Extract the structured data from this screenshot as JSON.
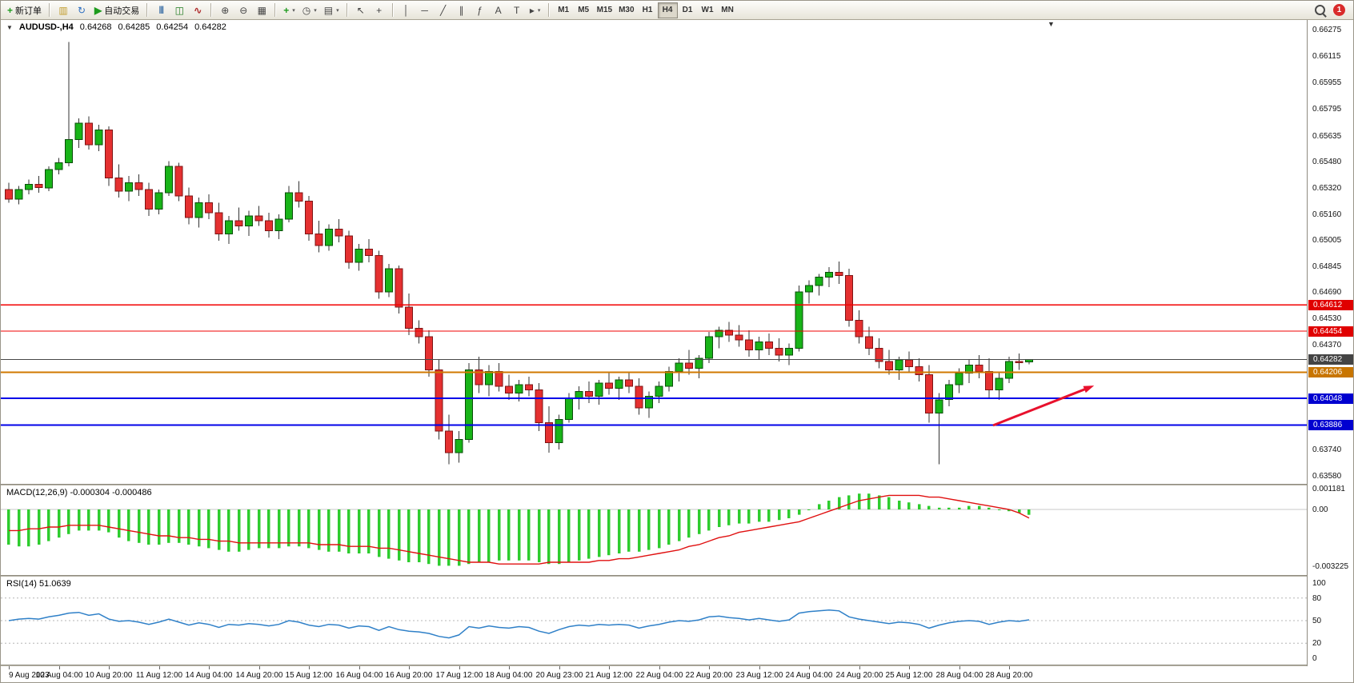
{
  "toolbar": {
    "new_order_label": "新订单",
    "autotrading_label": "自动交易",
    "timeframes": [
      "M1",
      "M5",
      "M15",
      "M30",
      "H1",
      "H4",
      "D1",
      "W1",
      "MN"
    ],
    "active_timeframe": "H4",
    "notification_count": "1"
  },
  "icons": {
    "new_order": "+",
    "charts": "▥",
    "profiles": "↻",
    "autotrading": "▶",
    "chart_bars": "|||",
    "chart_candles": "◫",
    "chart_line": "∿",
    "zoom_in": "⊕",
    "zoom_out": "⊖",
    "tile_windows": "▦",
    "indicators": "+",
    "periods": "◷",
    "templates": "▤",
    "cursor": "↖",
    "crosshair": "+",
    "vertical_line": "│",
    "horizontal_line": "─",
    "trendline": "╱",
    "channel": "∥",
    "fibonacci": "ƒ",
    "text": "A",
    "text_label": "T",
    "arrows": "▸",
    "caret": "▾",
    "chart_menu": "▼",
    "shift_marker": "▼"
  },
  "chart": {
    "header": {
      "symbol_period": "AUDUSD-,H4",
      "open": "0.64268",
      "high": "0.64285",
      "low": "0.64254",
      "close": "0.64282"
    },
    "levels": [
      {
        "type": "resistance",
        "price": 0.64612,
        "label": "0.64612",
        "color": "#f20000",
        "tag_bg": "#e00000",
        "width": 1.3
      },
      {
        "type": "resistance",
        "price": 0.64454,
        "label": "0.64454",
        "color": "#f20000",
        "tag_bg": "#e00000",
        "width": 1.3
      },
      {
        "type": "current-price",
        "price": 0.64282,
        "label": "0.64282",
        "color": "#484848",
        "tag_bg": "#444444",
        "width": 1
      },
      {
        "type": "pivot",
        "price": 0.64206,
        "label": "0.64206",
        "color": "#d07800",
        "tag_bg": "#c87500",
        "width": 2
      },
      {
        "type": "support",
        "price": 0.64048,
        "label": "0.64048",
        "color": "#0000e8",
        "tag_bg": "#0000d0",
        "width": 2
      },
      {
        "type": "support",
        "price": 0.63886,
        "label": "0.63886",
        "color": "#0000e8",
        "tag_bg": "#0000d0",
        "width": 2
      }
    ],
    "arrow_annotation": {
      "x1_index": 98.4,
      "price1": 0.63885,
      "x2_index": 108.5,
      "price2": 0.64125,
      "color": "#e8112d"
    }
  },
  "chart_data": {
    "type": "candlestick",
    "symbol": "AUDUSD-",
    "period": "H4",
    "price_axis_labels": [
      "0.66275",
      "0.66115",
      "0.65955",
      "0.65795",
      "0.65635",
      "0.65480",
      "0.65320",
      "0.65160",
      "0.65005",
      "0.64845",
      "0.64690",
      "0.64530",
      "0.64370",
      "0.64210",
      "0.64050",
      "0.63890",
      "0.63740",
      "0.63580"
    ],
    "price_range": {
      "max": 0.66275,
      "min": 0.6358
    },
    "time_labels": [
      "9 Aug 2023",
      "10 Aug 04:00",
      "10 Aug 20:00",
      "11 Aug 12:00",
      "14 Aug 04:00",
      "14 Aug 20:00",
      "15 Aug 12:00",
      "16 Aug 04:00",
      "16 Aug 20:00",
      "17 Aug 12:00",
      "18 Aug 04:00",
      "20 Aug 23:00",
      "21 Aug 12:00",
      "22 Aug 04:00",
      "22 Aug 20:00",
      "23 Aug 12:00",
      "24 Aug 04:00",
      "24 Aug 20:00",
      "25 Aug 12:00",
      "28 Aug 04:00",
      "28 Aug 20:00"
    ],
    "candles": [
      [
        0.6531,
        0.6535,
        0.6523,
        0.6525
      ],
      [
        0.6525,
        0.6533,
        0.6522,
        0.6531
      ],
      [
        0.6531,
        0.6537,
        0.6528,
        0.6534
      ],
      [
        0.6534,
        0.6539,
        0.6529,
        0.6532
      ],
      [
        0.6532,
        0.6545,
        0.653,
        0.6543
      ],
      [
        0.6543,
        0.655,
        0.654,
        0.6547
      ],
      [
        0.6547,
        0.662,
        0.6545,
        0.6561
      ],
      [
        0.6561,
        0.6574,
        0.6556,
        0.6571
      ],
      [
        0.6571,
        0.6575,
        0.6555,
        0.6558
      ],
      [
        0.6558,
        0.657,
        0.6554,
        0.6567
      ],
      [
        0.6567,
        0.6569,
        0.6533,
        0.6538
      ],
      [
        0.6538,
        0.6546,
        0.6526,
        0.653
      ],
      [
        0.653,
        0.6539,
        0.6524,
        0.6535
      ],
      [
        0.6535,
        0.654,
        0.6527,
        0.6531
      ],
      [
        0.6531,
        0.6535,
        0.6515,
        0.6519
      ],
      [
        0.6519,
        0.6531,
        0.6516,
        0.6529
      ],
      [
        0.6529,
        0.6548,
        0.6527,
        0.6545
      ],
      [
        0.6545,
        0.6547,
        0.6524,
        0.6527
      ],
      [
        0.6527,
        0.6532,
        0.651,
        0.6514
      ],
      [
        0.6514,
        0.6526,
        0.6508,
        0.6523
      ],
      [
        0.6523,
        0.6528,
        0.6513,
        0.6517
      ],
      [
        0.6517,
        0.6523,
        0.65,
        0.6504
      ],
      [
        0.6504,
        0.6515,
        0.6498,
        0.6512
      ],
      [
        0.6512,
        0.652,
        0.6506,
        0.6509
      ],
      [
        0.6509,
        0.6518,
        0.6503,
        0.6515
      ],
      [
        0.6515,
        0.6521,
        0.6509,
        0.6512
      ],
      [
        0.6512,
        0.6517,
        0.6502,
        0.6506
      ],
      [
        0.6506,
        0.6516,
        0.6501,
        0.6513
      ],
      [
        0.6513,
        0.6533,
        0.6511,
        0.6529
      ],
      [
        0.6529,
        0.6536,
        0.652,
        0.6524
      ],
      [
        0.6524,
        0.6527,
        0.65,
        0.6504
      ],
      [
        0.6504,
        0.6512,
        0.6493,
        0.6497
      ],
      [
        0.6497,
        0.651,
        0.6494,
        0.6507
      ],
      [
        0.6507,
        0.6513,
        0.6499,
        0.6503
      ],
      [
        0.6503,
        0.6506,
        0.6483,
        0.6487
      ],
      [
        0.6487,
        0.6498,
        0.6482,
        0.6495
      ],
      [
        0.6495,
        0.6501,
        0.6487,
        0.6491
      ],
      [
        0.6491,
        0.6494,
        0.6465,
        0.6469
      ],
      [
        0.6469,
        0.6486,
        0.6466,
        0.6483
      ],
      [
        0.6483,
        0.6485,
        0.6456,
        0.646
      ],
      [
        0.646,
        0.6468,
        0.6443,
        0.6447
      ],
      [
        0.6447,
        0.6452,
        0.6438,
        0.6442
      ],
      [
        0.6442,
        0.6446,
        0.6418,
        0.6422
      ],
      [
        0.6422,
        0.6428,
        0.638,
        0.6385
      ],
      [
        0.6385,
        0.6395,
        0.6365,
        0.6372
      ],
      [
        0.6372,
        0.6385,
        0.6366,
        0.638
      ],
      [
        0.638,
        0.6426,
        0.6378,
        0.6422
      ],
      [
        0.6422,
        0.643,
        0.6408,
        0.6413
      ],
      [
        0.6413,
        0.6425,
        0.6406,
        0.6421
      ],
      [
        0.6421,
        0.6426,
        0.6409,
        0.6412
      ],
      [
        0.6412,
        0.6419,
        0.6404,
        0.6408
      ],
      [
        0.6408,
        0.6416,
        0.6403,
        0.6413
      ],
      [
        0.6413,
        0.6418,
        0.6406,
        0.641
      ],
      [
        0.641,
        0.6414,
        0.6385,
        0.639
      ],
      [
        0.639,
        0.64,
        0.6372,
        0.6378
      ],
      [
        0.6378,
        0.6395,
        0.6374,
        0.6392
      ],
      [
        0.6392,
        0.6408,
        0.639,
        0.6405
      ],
      [
        0.6405,
        0.6412,
        0.6398,
        0.6409
      ],
      [
        0.6409,
        0.6415,
        0.6402,
        0.6406
      ],
      [
        0.6406,
        0.6416,
        0.6401,
        0.6414
      ],
      [
        0.6414,
        0.642,
        0.6407,
        0.6411
      ],
      [
        0.6411,
        0.6418,
        0.6404,
        0.6416
      ],
      [
        0.6416,
        0.6421,
        0.6408,
        0.6412
      ],
      [
        0.6412,
        0.6417,
        0.6395,
        0.6399
      ],
      [
        0.6399,
        0.6409,
        0.6393,
        0.6406
      ],
      [
        0.6406,
        0.6415,
        0.6402,
        0.6412
      ],
      [
        0.6412,
        0.6424,
        0.6409,
        0.6421
      ],
      [
        0.6421,
        0.6429,
        0.6415,
        0.6426
      ],
      [
        0.6426,
        0.6434,
        0.6419,
        0.6423
      ],
      [
        0.6423,
        0.6431,
        0.6417,
        0.6429
      ],
      [
        0.6429,
        0.6445,
        0.6426,
        0.6442
      ],
      [
        0.6442,
        0.6448,
        0.6435,
        0.6446
      ],
      [
        0.6446,
        0.6451,
        0.6439,
        0.6443
      ],
      [
        0.6443,
        0.6449,
        0.6436,
        0.644
      ],
      [
        0.644,
        0.6446,
        0.643,
        0.6434
      ],
      [
        0.6434,
        0.6442,
        0.6428,
        0.6439
      ],
      [
        0.6439,
        0.6444,
        0.6431,
        0.6435
      ],
      [
        0.6435,
        0.6441,
        0.6427,
        0.6431
      ],
      [
        0.6431,
        0.6438,
        0.6425,
        0.6435
      ],
      [
        0.6435,
        0.6473,
        0.6433,
        0.6469
      ],
      [
        0.6469,
        0.6476,
        0.6462,
        0.6473
      ],
      [
        0.6473,
        0.648,
        0.6467,
        0.6478
      ],
      [
        0.6478,
        0.6484,
        0.6472,
        0.6481
      ],
      [
        0.6481,
        0.64875,
        0.6474,
        0.6479
      ],
      [
        0.6479,
        0.6483,
        0.6448,
        0.6452
      ],
      [
        0.6452,
        0.6458,
        0.6438,
        0.6442
      ],
      [
        0.6442,
        0.6448,
        0.6431,
        0.6435
      ],
      [
        0.6435,
        0.6441,
        0.6423,
        0.6427
      ],
      [
        0.6427,
        0.6434,
        0.6419,
        0.6422
      ],
      [
        0.6422,
        0.643,
        0.6416,
        0.6428
      ],
      [
        0.6428,
        0.6433,
        0.642,
        0.6424
      ],
      [
        0.6424,
        0.6429,
        0.6415,
        0.6419
      ],
      [
        0.6419,
        0.6425,
        0.639,
        0.6396
      ],
      [
        0.6396,
        0.6408,
        0.6365,
        0.6404
      ],
      [
        0.6404,
        0.6416,
        0.64,
        0.6413
      ],
      [
        0.6413,
        0.6423,
        0.6408,
        0.642
      ],
      [
        0.642,
        0.6428,
        0.6414,
        0.6425
      ],
      [
        0.6425,
        0.6431,
        0.6417,
        0.6421
      ],
      [
        0.6421,
        0.6429,
        0.6405,
        0.641
      ],
      [
        0.641,
        0.642,
        0.6404,
        0.6417
      ],
      [
        0.6417,
        0.643,
        0.6414,
        0.6427
      ],
      [
        0.6427,
        0.6432,
        0.6422,
        0.64268
      ],
      [
        0.64268,
        0.64285,
        0.64254,
        0.64282
      ]
    ],
    "indicators": {
      "macd": {
        "label": "MACD(12,26,9) -0.000304 -0.000486",
        "value": -0.000304,
        "signal_value": -0.000486,
        "axis_labels": [
          [
            "0.001181",
            0.001181
          ],
          [
            "0.00",
            0
          ],
          [
            "-0.003225",
            -0.003225
          ]
        ],
        "range": {
          "max": 0.001181,
          "min": -0.003225
        },
        "value_scale": 0.0001,
        "histogram": [
          -20,
          -21,
          -21,
          -20,
          -18,
          -16,
          -14,
          -12,
          -12,
          -12,
          -13,
          -16,
          -18,
          -19,
          -20,
          -20,
          -19,
          -19,
          -20,
          -21,
          -22,
          -23,
          -24,
          -24,
          -23,
          -22,
          -22,
          -22,
          -21,
          -21,
          -22,
          -23,
          -24,
          -24,
          -25,
          -25,
          -25,
          -27,
          -28,
          -29,
          -30,
          -30,
          -31,
          -32,
          -32,
          -32,
          -31,
          -30,
          -30,
          -29,
          -29,
          -29,
          -29,
          -30,
          -31,
          -31,
          -30,
          -29,
          -28,
          -27,
          -26,
          -25,
          -24,
          -24,
          -23,
          -22,
          -20,
          -18,
          -16,
          -14,
          -12,
          -10,
          -9,
          -8,
          -8,
          -7,
          -7,
          -6,
          -5,
          -3,
          0,
          3,
          5,
          7,
          8,
          9,
          9,
          8,
          7,
          5,
          4,
          3,
          2,
          1,
          1,
          1,
          2,
          2,
          1,
          0,
          -1,
          -2,
          -3.04
        ],
        "signal": [
          -12,
          -12,
          -11,
          -11,
          -10,
          -10,
          -9,
          -9,
          -9,
          -9,
          -10,
          -11,
          -12,
          -13,
          -14,
          -15,
          -15,
          -16,
          -16,
          -17,
          -17,
          -18,
          -18,
          -19,
          -19,
          -19,
          -19,
          -19,
          -19,
          -19,
          -19,
          -20,
          -20,
          -20,
          -21,
          -21,
          -21,
          -22,
          -22,
          -23,
          -24,
          -25,
          -26,
          -27,
          -28,
          -29,
          -30,
          -30,
          -30,
          -31,
          -31,
          -31,
          -31,
          -31,
          -30,
          -30,
          -30,
          -30,
          -30,
          -29,
          -29,
          -28,
          -28,
          -27,
          -26,
          -25,
          -24,
          -23,
          -21,
          -20,
          -18,
          -16,
          -15,
          -13,
          -12,
          -11,
          -10,
          -9,
          -8,
          -7,
          -5,
          -3,
          -1,
          1,
          3,
          5,
          6,
          7,
          8,
          8,
          8,
          8,
          7,
          7,
          6,
          5,
          4,
          3,
          2,
          1,
          0,
          -2,
          -4.86
        ]
      },
      "rsi": {
        "label": "RSI(14) 51.0639",
        "value": 51.0639,
        "axis_labels": [
          [
            "100",
            100
          ],
          [
            "80",
            80
          ],
          [
            "50",
            50
          ],
          [
            "20",
            20
          ],
          [
            "0",
            0
          ]
        ],
        "levels": [
          80,
          50,
          20
        ],
        "range": {
          "max": 100,
          "min": 0
        },
        "values": [
          50,
          52,
          53,
          52,
          55,
          57,
          60,
          61,
          57,
          59,
          52,
          49,
          50,
          48,
          45,
          48,
          52,
          48,
          44,
          47,
          45,
          41,
          45,
          44,
          46,
          45,
          43,
          45,
          50,
          48,
          44,
          42,
          45,
          44,
          40,
          43,
          42,
          37,
          42,
          38,
          36,
          35,
          33,
          29,
          27,
          31,
          42,
          40,
          43,
          41,
          40,
          42,
          41,
          36,
          33,
          38,
          42,
          44,
          43,
          45,
          44,
          45,
          44,
          40,
          43,
          45,
          48,
          50,
          49,
          51,
          55,
          56,
          54,
          53,
          51,
          53,
          51,
          49,
          51,
          60,
          62,
          63,
          64,
          63,
          55,
          52,
          50,
          48,
          46,
          48,
          47,
          45,
          40,
          44,
          47,
          49,
          50,
          49,
          45,
          48,
          50,
          49,
          51.06
        ]
      }
    },
    "colors": {
      "up_candle": "#18b418",
      "up_border": "#0a4d0a",
      "down_candle": "#e53030",
      "down_border": "#7e1414",
      "wick": "#333333",
      "macd_histogram": "#2ecc2e",
      "macd_signal": "#e01010",
      "rsi_line": "#2f80c8"
    }
  }
}
